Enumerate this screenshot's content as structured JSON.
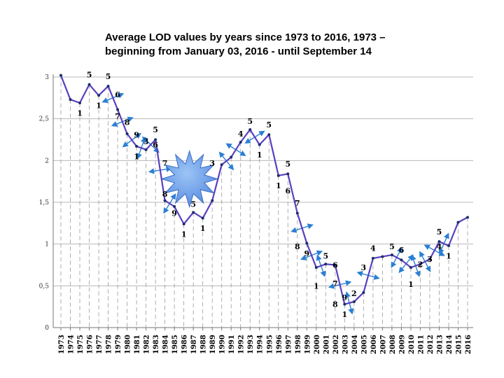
{
  "chart_data": {
    "type": "line",
    "title_lines": [
      "Average LOD values by years since 1973 to 2016, 1973 –",
      "beginning from January 03, 2016 - until September 14"
    ],
    "xlabel": "",
    "ylabel": "",
    "ylim": [
      0,
      3
    ],
    "yticks": [
      "0",
      "0,5",
      "1",
      "1,5",
      "2",
      "2,5",
      "3"
    ],
    "grid": true,
    "legend": "none",
    "line_color": "#5a3fc0",
    "arrow_color": "#2a7fd4",
    "star_color": "#5b8fe0",
    "x": [
      "1973",
      "1974",
      "1975",
      "1976",
      "1977",
      "1978",
      "1979",
      "1980",
      "1981",
      "1982",
      "1983",
      "1984",
      "1985",
      "1986",
      "1987",
      "1988",
      "1989",
      "1990",
      "1991",
      "1992",
      "1993",
      "1994",
      "1995",
      "1996",
      "1997",
      "1998",
      "1999",
      "2000",
      "2001",
      "2002",
      "2003",
      "2004",
      "2005",
      "2006",
      "2007",
      "2008",
      "2009",
      "2010",
      "2011",
      "2012",
      "2013",
      "2014",
      "2015",
      "2016"
    ],
    "values": [
      3.02,
      2.73,
      2.69,
      2.91,
      2.78,
      2.89,
      2.61,
      2.32,
      2.17,
      2.13,
      2.25,
      1.52,
      1.45,
      1.24,
      1.38,
      1.31,
      1.52,
      1.95,
      2.04,
      2.22,
      2.37,
      2.19,
      2.31,
      1.82,
      1.84,
      1.37,
      1.01,
      0.72,
      0.76,
      0.75,
      0.28,
      0.31,
      0.42,
      0.83,
      0.85,
      0.87,
      0.81,
      0.72,
      0.76,
      0.82,
      1.03,
      0.98,
      1.26,
      1.32
    ],
    "annotations": [
      {
        "text": "1",
        "year": "1975",
        "dy": -0.12
      },
      {
        "text": "5",
        "year": "1976",
        "dy": 0.12
      },
      {
        "text": "1",
        "year": "1977",
        "dy": -0.12
      },
      {
        "text": "5",
        "year": "1978",
        "dy": 0.12
      },
      {
        "text": "6",
        "year": "1979",
        "dy": 0.18
      },
      {
        "text": "7",
        "year": "1979",
        "dy": -0.08
      },
      {
        "text": "8",
        "year": "1980",
        "dy": 0.14
      },
      {
        "text": "9",
        "year": "1981",
        "dy": 0.14
      },
      {
        "text": "1",
        "year": "1981",
        "dy": -0.12
      },
      {
        "text": "3",
        "year": "1982",
        "dy": 0.1
      },
      {
        "text": "5",
        "year": "1983",
        "dy": 0.12
      },
      {
        "text": "6",
        "year": "1983",
        "dy": -0.06
      },
      {
        "text": "7",
        "year": "1984",
        "dy": 0.45
      },
      {
        "text": "8",
        "year": "1984",
        "dy": 0.08
      },
      {
        "text": "9",
        "year": "1985",
        "dy": -0.08
      },
      {
        "text": "1",
        "year": "1986",
        "dy": -0.12
      },
      {
        "text": "5",
        "year": "1987",
        "dy": 0.1
      },
      {
        "text": "1",
        "year": "1988",
        "dy": -0.12
      },
      {
        "text": "3",
        "year": "1989",
        "dy": 0.45
      },
      {
        "text": "4",
        "year": "1992",
        "dy": 0.1
      },
      {
        "text": "5",
        "year": "1993",
        "dy": 0.1
      },
      {
        "text": "1",
        "year": "1994",
        "dy": -0.12
      },
      {
        "text": "5",
        "year": "1995",
        "dy": 0.12
      },
      {
        "text": "1",
        "year": "1996",
        "dy": -0.12
      },
      {
        "text": "5",
        "year": "1997",
        "dy": 0.12
      },
      {
        "text": "6",
        "year": "1997",
        "dy": -0.2
      },
      {
        "text": "7",
        "year": "1998",
        "dy": 0.12
      },
      {
        "text": "8",
        "year": "1998",
        "dy": -0.4
      },
      {
        "text": "9",
        "year": "1999",
        "dy": -0.12
      },
      {
        "text": "1",
        "year": "2000",
        "dy": -0.22
      },
      {
        "text": "5",
        "year": "2001",
        "dy": 0.1
      },
      {
        "text": "6",
        "year": "2002",
        "dy": 0.0
      },
      {
        "text": "7",
        "year": "2002",
        "dy": -0.22
      },
      {
        "text": "8",
        "year": "2002",
        "dy": -0.47
      },
      {
        "text": "9",
        "year": "2003",
        "dy": 0.08
      },
      {
        "text": "1",
        "year": "2003",
        "dy": -0.12
      },
      {
        "text": "2",
        "year": "2004",
        "dy": 0.1
      },
      {
        "text": "3",
        "year": "2005",
        "dy": 0.3
      },
      {
        "text": "4",
        "year": "2006",
        "dy": 0.12
      },
      {
        "text": "5",
        "year": "2008",
        "dy": 0.1
      },
      {
        "text": "6",
        "year": "2009",
        "dy": 0.12
      },
      {
        "text": "1",
        "year": "2010",
        "dy": -0.2
      },
      {
        "text": "2",
        "year": "2011",
        "dy": 0.0
      },
      {
        "text": "3",
        "year": "2012",
        "dy": 0.0
      },
      {
        "text": "4",
        "year": "2013",
        "dy": -0.06
      },
      {
        "text": "5",
        "year": "2013",
        "dy": 0.12
      },
      {
        "text": "1",
        "year": "2014",
        "dy": -0.12
      }
    ]
  }
}
